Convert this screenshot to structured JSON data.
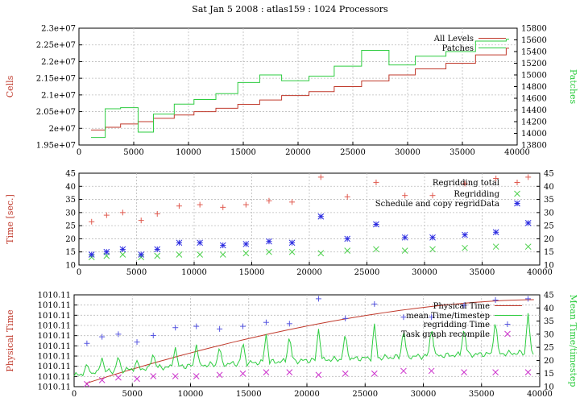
{
  "title": "Sat Jan 5 2008 : atlas159 : 1024 Processors",
  "chart_data": [
    {
      "type": "line",
      "x_ticks": [
        "0",
        "5000",
        "10000",
        "15000",
        "20000",
        "25000",
        "30000",
        "35000",
        "40000"
      ],
      "xlim": [
        0,
        40000
      ],
      "left_axis": {
        "label": "Cells",
        "color": "#c0392b",
        "ticks": [
          "1.95e+07",
          "2e+07",
          "2.05e+07",
          "2.1e+07",
          "2.15e+07",
          "2.2e+07",
          "2.25e+07",
          "2.3e+07"
        ],
        "ylim": [
          19500000,
          23000000
        ]
      },
      "right_axis": {
        "label": "Patches",
        "color": "#2ecc40",
        "ticks": [
          "13800",
          "14000",
          "14200",
          "14400",
          "14600",
          "14800",
          "15000",
          "15200",
          "15400",
          "15600",
          "15800"
        ],
        "ylim": [
          13800,
          15800
        ]
      },
      "legend": "top-right",
      "grid": true,
      "series": [
        {
          "name": "All Levels",
          "axis": "left",
          "color": "#c0392b",
          "step": true,
          "x": [
            1100,
            2400,
            3800,
            5400,
            6800,
            8700,
            10500,
            12500,
            14500,
            16500,
            18500,
            21000,
            23300,
            25800,
            28300,
            30700,
            33500,
            36200,
            39000
          ],
          "y": [
            19950000,
            20030000,
            20130000,
            20200000,
            20300000,
            20400000,
            20500000,
            20600000,
            20720000,
            20850000,
            20980000,
            21100000,
            21250000,
            21420000,
            21600000,
            21780000,
            21950000,
            22200000,
            22400000
          ]
        },
        {
          "name": "Patches",
          "axis": "right",
          "color": "#2ecc40",
          "step": true,
          "x": [
            1100,
            2400,
            3800,
            5400,
            6800,
            8700,
            10500,
            12500,
            14500,
            16500,
            18500,
            21000,
            23300,
            25800,
            28300,
            30700,
            33500,
            36200,
            39000
          ],
          "y": [
            13930,
            14420,
            14440,
            14020,
            14330,
            14500,
            14580,
            14680,
            14870,
            15000,
            14900,
            14980,
            15150,
            15420,
            15170,
            15320,
            15400,
            15580,
            15610
          ]
        }
      ]
    },
    {
      "type": "scatter",
      "x_ticks": [
        "0",
        "5000",
        "10000",
        "15000",
        "20000",
        "25000",
        "30000",
        "35000",
        "40000"
      ],
      "xlim": [
        0,
        40000
      ],
      "ylabel": "Time [sec.]",
      "y_ticks": [
        "10",
        "15",
        "20",
        "25",
        "30",
        "35",
        "40",
        "45"
      ],
      "ylim": [
        10,
        45
      ],
      "legend": "top-right",
      "grid": true,
      "series": [
        {
          "name": "Regridding total",
          "marker": "plus",
          "color": "#e05a4f",
          "x": [
            1100,
            2400,
            3800,
            5400,
            6800,
            8700,
            10500,
            12500,
            14500,
            16500,
            18500,
            21000,
            23300,
            25800,
            28300,
            30700,
            33500,
            36200,
            39000
          ],
          "y": [
            26.5,
            29,
            30,
            27,
            29.5,
            32.5,
            33,
            32,
            33,
            34.5,
            34,
            43.5,
            36,
            41.5,
            36.5,
            36.5,
            41,
            43,
            43.5
          ]
        },
        {
          "name": "Regridding",
          "marker": "cross",
          "color": "#4cd04c",
          "x": [
            1100,
            2400,
            3800,
            5400,
            6800,
            8700,
            10500,
            12500,
            14500,
            16500,
            18500,
            21000,
            23300,
            25800,
            28300,
            30700,
            33500,
            36200,
            39000
          ],
          "y": [
            13,
            13.5,
            14,
            13,
            13.5,
            14,
            14,
            14,
            14.5,
            15,
            15,
            14.5,
            15.5,
            16,
            15.5,
            16,
            16.5,
            17,
            17
          ]
        },
        {
          "name": "Schedule and copy regridData",
          "marker": "star",
          "color": "#2a2ae0",
          "x": [
            1100,
            2400,
            3800,
            5400,
            6800,
            8700,
            10500,
            12500,
            14500,
            16500,
            18500,
            21000,
            23300,
            25800,
            28300,
            30700,
            33500,
            36200,
            39000
          ],
          "y": [
            14,
            15,
            16,
            14,
            16,
            18.5,
            18.5,
            17.5,
            18,
            19,
            18.5,
            28.5,
            20,
            25.5,
            20.5,
            20.5,
            21.5,
            22.5,
            26
          ]
        }
      ]
    },
    {
      "type": "line",
      "x_ticks": [
        "0",
        "5000",
        "10000",
        "15000",
        "20000",
        "25000",
        "30000",
        "35000",
        "40000"
      ],
      "xlim": [
        0,
        40000
      ],
      "left_axis": {
        "label": "Physical Time",
        "color": "#c0392b",
        "ticks": [
          "1010.11",
          "1010.11",
          "1010.11",
          "1010.11",
          "1010.11",
          "1010.11",
          "1010.11",
          "1010.11",
          "1010.11",
          "1010.11"
        ]
      },
      "right_axis": {
        "label": "Mean Time/timestep",
        "color": "#2ecc40",
        "ticks": [
          "10",
          "15",
          "20",
          "25",
          "30",
          "35",
          "40",
          "45"
        ],
        "ylim": [
          10,
          45
        ]
      },
      "legend": "top-right",
      "grid": true,
      "series": [
        {
          "name": "Physical Time",
          "axis": "left",
          "color": "#c0392b",
          "shape": "rising-concave"
        },
        {
          "name": "mean Time/timestep",
          "axis": "right",
          "color": "#2ecc40",
          "baseline_from": [
            14,
            23
          ],
          "spikes_x": [
            1100,
            2400,
            3800,
            5400,
            6800,
            8700,
            10500,
            12500,
            14500,
            16500,
            18500,
            21000,
            23300,
            25800,
            28300,
            30700,
            33500,
            36200,
            39000
          ],
          "spikes_y": [
            19,
            21,
            22,
            20,
            23,
            25,
            26,
            25.5,
            27.5,
            30,
            30,
            32,
            31,
            34,
            32.5,
            33,
            33,
            36,
            38
          ]
        },
        {
          "name": "regridding Time",
          "marker": "plus",
          "axis": "right",
          "color": "#5555e0",
          "x": [
            1100,
            2400,
            3800,
            5400,
            6800,
            8700,
            10500,
            12500,
            14500,
            16500,
            18500,
            21000,
            23300,
            25800,
            28300,
            30700,
            33500,
            36200,
            39000
          ],
          "y": [
            26.5,
            29,
            30,
            27,
            29.5,
            32.5,
            33,
            32,
            33,
            34.5,
            34,
            43.5,
            36,
            41.5,
            36.5,
            36.5,
            41,
            43,
            43.5
          ]
        },
        {
          "name": "Task graph recompile",
          "marker": "cross",
          "axis": "right",
          "color": "#cc33cc",
          "x": [
            1100,
            2400,
            3800,
            5400,
            6800,
            8700,
            10500,
            12500,
            14500,
            16500,
            18500,
            21000,
            23300,
            25800,
            28300,
            30700,
            33500,
            36200,
            39000
          ],
          "y": [
            11,
            12.5,
            13.5,
            13,
            14,
            14,
            14,
            14.5,
            15,
            15.5,
            15.5,
            14.5,
            15,
            15,
            16,
            16,
            15.5,
            15.5,
            15.5
          ]
        }
      ]
    }
  ]
}
